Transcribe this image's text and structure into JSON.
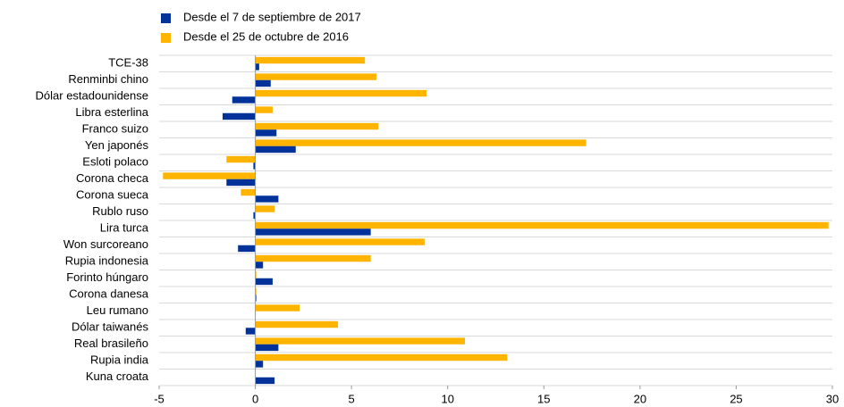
{
  "chart_data": {
    "type": "hbar",
    "categories": [
      "TCE-38",
      "Renminbi chino",
      "Dólar estadounidense",
      "Libra esterlina",
      "Franco suizo",
      "Yen japonés",
      "Esloti polaco",
      "Corona checa",
      "Corona sueca",
      "Rublo ruso",
      "Lira turca",
      "Won surcoreano",
      "Rupia indonesia",
      "Forinto húngaro",
      "Corona danesa",
      "Leu rumano",
      "Dólar taiwanés",
      "Real brasileño",
      "Rupia india",
      "Kuna croata"
    ],
    "series": [
      {
        "name": "Desde el 7 de septiembre de 2017",
        "color": "#003299",
        "values": [
          0.2,
          0.8,
          -1.2,
          -1.7,
          1.1,
          2.1,
          -0.1,
          -1.5,
          1.2,
          -0.1,
          6.0,
          -0.9,
          0.4,
          0.9,
          0.05,
          0,
          -0.5,
          1.2,
          0.4,
          1.0
        ]
      },
      {
        "name": "Desde el 25 de octubre de 2016",
        "color": "#ffb400",
        "values": [
          5.7,
          6.3,
          8.9,
          0.9,
          6.4,
          17.2,
          -1.5,
          -4.8,
          -0.75,
          1.0,
          29.8,
          8.8,
          6.0,
          0.05,
          0.05,
          2.3,
          4.3,
          10.9,
          13.1,
          0
        ]
      }
    ],
    "xlim": [
      -5,
      30
    ],
    "xticks": [
      -5,
      0,
      5,
      10,
      15,
      20,
      25,
      30
    ]
  }
}
